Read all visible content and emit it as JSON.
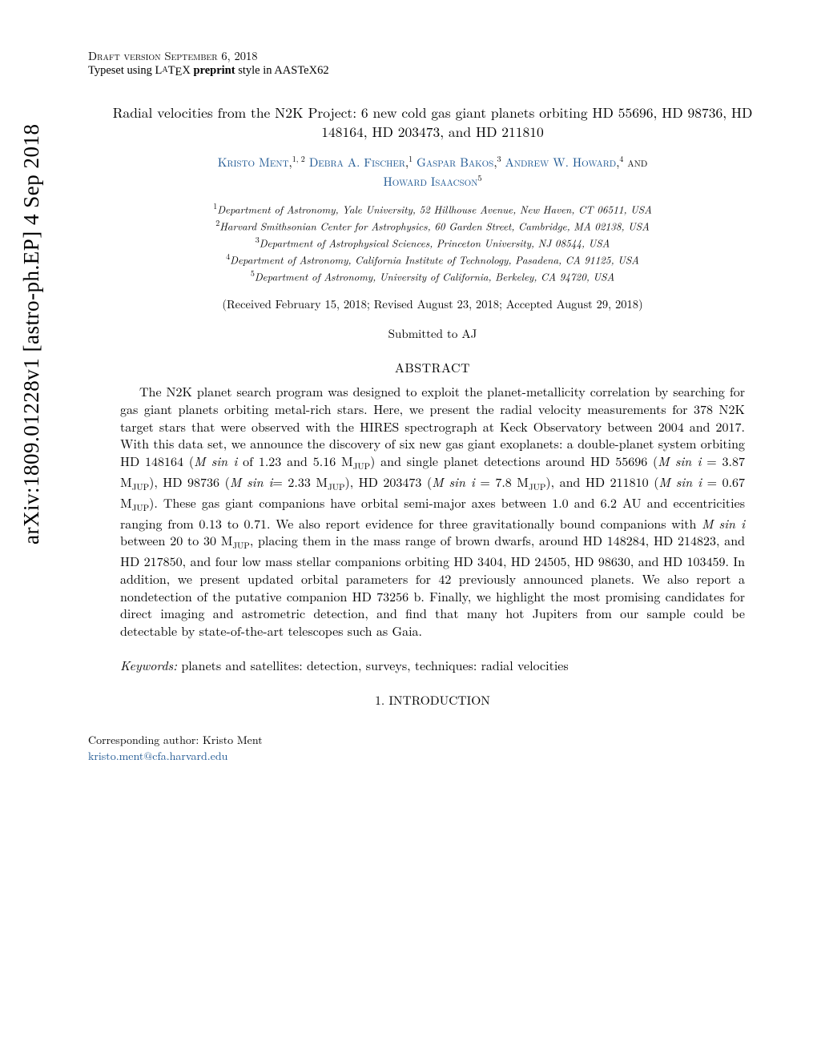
{
  "arxiv": {
    "id": "arXiv:1809.01228v1",
    "category": "[astro-ph.EP]",
    "date": "4 Sep 2018"
  },
  "header": {
    "draft_line": "Draft version September 6, 2018",
    "typeset_prefix": "Typeset using L",
    "typeset_latex_a": "A",
    "typeset_latex_t": "T",
    "typeset_latex_e": "E",
    "typeset_latex_x": "X ",
    "typeset_preprint": "preprint",
    "typeset_suffix": " style in AASTeX62"
  },
  "title": "Radial velocities from the N2K Project: 6 new cold gas giant planets orbiting HD 55696, HD 98736, HD 148164, HD 203473, and HD 211810",
  "authors": {
    "a1_name": "Kristo Ment",
    "a1_aff": "1, 2",
    "a2_name": "Debra A. Fischer",
    "a2_aff": "1",
    "a3_name": "Gaspar Bakos",
    "a3_aff": "3",
    "a4_name": "Andrew W. Howard",
    "a4_aff": "4",
    "and": " and",
    "a5_name": "Howard Isaacson",
    "a5_aff": "5"
  },
  "affiliations": {
    "l1": "Department of Astronomy, Yale University, 52 Hillhouse Avenue, New Haven, CT 06511, USA",
    "l2": "Harvard Smithsonian Center for Astrophysics, 60 Garden Street, Cambridge, MA 02138, USA",
    "l3": "Department of Astrophysical Sciences, Princeton University, NJ 08544, USA",
    "l4": "Department of Astronomy, California Institute of Technology, Pasadena, CA 91125, USA",
    "l5": "Department of Astronomy, University of California, Berkeley, CA 94720, USA"
  },
  "dates": "(Received February 15, 2018; Revised August 23, 2018; Accepted August 29, 2018)",
  "submitted": "Submitted to AJ",
  "abstract": {
    "heading": "ABSTRACT",
    "body_1": "The N2K planet search program was designed to exploit the planet-metallicity correlation by searching for gas giant planets orbiting metal-rich stars. Here, we present the radial velocity measurements for 378 N2K target stars that were observed with the HIRES spectrograph at Keck Observatory between 2004 and 2017. With this data set, we announce the discovery of six new gas giant exoplanets: a double-planet system orbiting HD 148164 (",
    "msini": "M sin i",
    "body_2": " of 1.23 and 5.16 M",
    "jup": "JUP",
    "body_3": ") and single planet detections around HD 55696 (",
    "body_4": " = 3.87 M",
    "body_5": "), HD 98736 (",
    "body_6": "= 2.33 M",
    "body_7": "), HD 203473 (",
    "body_8": " = 7.8 M",
    "body_9": "), and HD 211810 (",
    "body_10": " = 0.67 M",
    "body_11": "). These gas giant companions have orbital semi-major axes between 1.0 and 6.2 AU and eccentricities ranging from 0.13 to 0.71. We also report evidence for three gravitationally bound companions with ",
    "body_12": " between 20 to 30 M",
    "body_13": ", placing them in the mass range of brown dwarfs, around HD 148284, HD 214823, and HD 217850, and four low mass stellar companions orbiting HD 3404, HD 24505, HD 98630, and HD 103459. In addition, we present updated orbital parameters for 42 previously announced planets. We also report a nondetection of the putative companion HD 73256 b. Finally, we highlight the most promising candidates for direct imaging and astrometric detection, and find that many hot Jupiters from our sample could be detectable by state-of-the-art telescopes such as Gaia."
  },
  "keywords": {
    "label": "Keywords:",
    "text": " planets and satellites: detection, surveys, techniques: radial velocities"
  },
  "section1": "1. INTRODUCTION",
  "corresponding": {
    "line1": "Corresponding author: Kristo Ment",
    "email": "kristo.ment@cfa.harvard.edu"
  },
  "colors": {
    "link": "#1a5490",
    "text": "#000000",
    "background": "#ffffff"
  }
}
